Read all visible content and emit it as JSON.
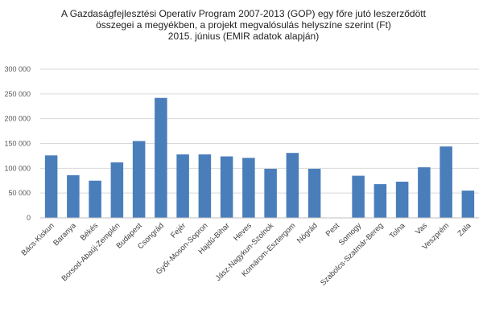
{
  "chart_data": {
    "type": "bar",
    "title_lines": [
      "A Gazdaságfejlesztési Operatív Program 2007-2013 (GOP) egy főre jutó leszerződött",
      "összegei a megyékben, a projekt megvalósulás helyszíne szerint (Ft)",
      "2015. június (EMIR adatok alapján)"
    ],
    "categories": [
      "Bács-Kiskun",
      "Baranya",
      "Békés",
      "Borsod-Abaúj-Zemplén",
      "Budapest",
      "Csongrád",
      "Fejér",
      "Győr-Moson-Sopron",
      "Hajdú-Bihar",
      "Heves",
      "Jász-Nagykun-Szolnok",
      "Komárom-Esztergom",
      "Nógrád",
      "Pest",
      "Somogy",
      "Szabolcs-Szatmár-Bereg",
      "Tolna",
      "Vas",
      "Veszprém",
      "Zala"
    ],
    "values": [
      126000,
      86000,
      75000,
      112000,
      155000,
      242000,
      128000,
      128000,
      124000,
      121000,
      99000,
      131000,
      99000,
      0,
      85000,
      68000,
      73000,
      102000,
      144000,
      55000
    ],
    "ylim": [
      0,
      300000
    ],
    "yticks": [
      0,
      50000,
      100000,
      150000,
      200000,
      250000,
      300000
    ],
    "ytick_labels": [
      "0",
      "50 000",
      "100 000",
      "150 000",
      "200 000",
      "250 000",
      "300 000"
    ],
    "grid": true,
    "bar_color": "#4a7ebb",
    "grid_color": "#d9d9d9",
    "axis_color": "#bfbfbf"
  }
}
